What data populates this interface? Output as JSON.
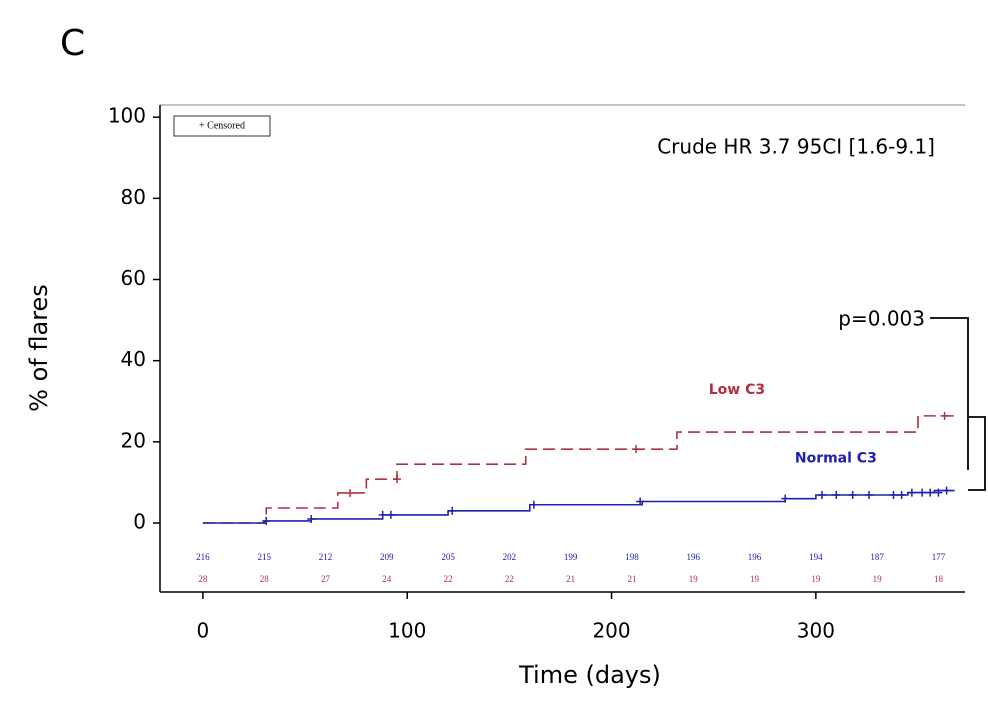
{
  "panel_label": "C",
  "chart_data": {
    "type": "step",
    "xlabel": "Time (days)",
    "ylabel": "% of flares",
    "xlim": [
      -21,
      373
    ],
    "ylim": [
      -17,
      103
    ],
    "xticks": [
      0,
      100,
      200,
      300
    ],
    "yticks": [
      0,
      20,
      40,
      60,
      80,
      100
    ],
    "legend_text": "+ Censored",
    "annotations": [
      "Crude HR 3.7 95CI [1.6-9.1]",
      "p=0.003"
    ],
    "risk_times": [
      0,
      30,
      60,
      90,
      120,
      150,
      180,
      210,
      240,
      270,
      300,
      330,
      360
    ],
    "series": [
      {
        "name": "Low C3",
        "color": "#b03040",
        "dashed": true,
        "x": [
          0,
          31,
          66,
          80,
          95,
          158,
          232,
          350,
          368
        ],
        "values": [
          0,
          3.7,
          7.4,
          10.8,
          14.5,
          18.2,
          22.4,
          26.4,
          26.4
        ],
        "censored_x": [
          72,
          95,
          212,
          363
        ],
        "censored_values": [
          7.4,
          10.8,
          18.2,
          26.4
        ],
        "at_risk": [
          28,
          28,
          27,
          24,
          22,
          22,
          21,
          21,
          19,
          19,
          19,
          19,
          18
        ]
      },
      {
        "name": "Normal C3",
        "color": "#2020b0",
        "dashed": false,
        "x": [
          0,
          30,
          53,
          88,
          120,
          160,
          215,
          285,
          300,
          345,
          358,
          368
        ],
        "values": [
          0,
          0.5,
          1,
          2,
          3,
          4.5,
          5.3,
          6,
          6.9,
          7.5,
          8,
          8
        ],
        "censored_x": [
          31,
          53,
          88,
          92,
          122,
          162,
          214,
          285,
          303,
          310,
          318,
          326,
          338,
          342,
          347,
          352,
          356,
          360,
          364
        ],
        "censored_values": [
          0.5,
          1,
          2,
          2,
          3,
          4.5,
          5.3,
          6,
          6.9,
          6.9,
          6.9,
          6.9,
          6.9,
          6.9,
          7.5,
          7.5,
          7.5,
          7.5,
          8
        ],
        "at_risk": [
          216,
          215,
          212,
          209,
          205,
          202,
          199,
          198,
          196,
          196,
          194,
          187,
          177
        ]
      }
    ]
  }
}
